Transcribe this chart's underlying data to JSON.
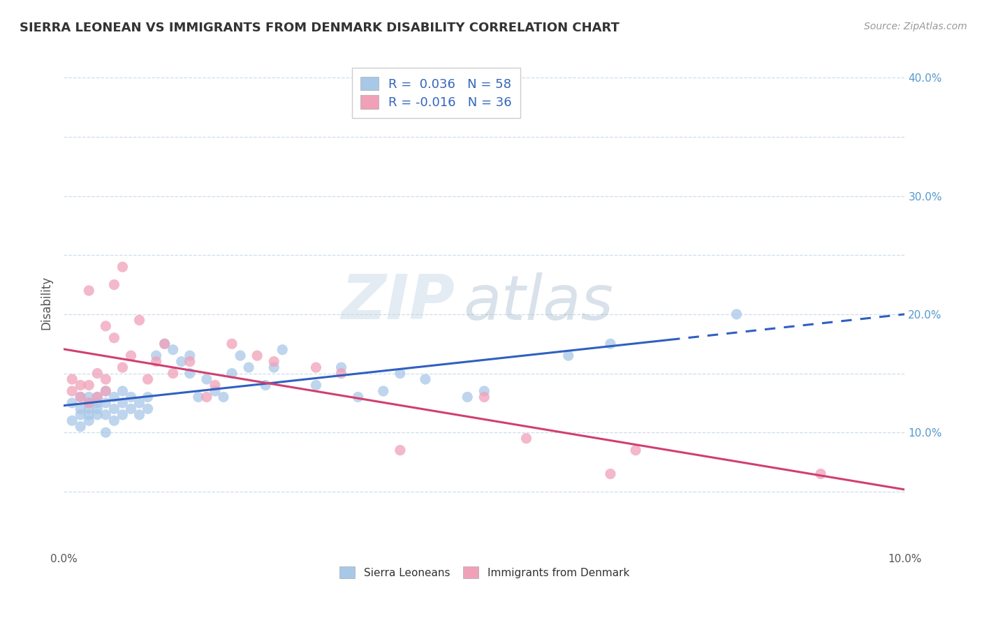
{
  "title": "SIERRA LEONEAN VS IMMIGRANTS FROM DENMARK DISABILITY CORRELATION CHART",
  "source_text": "Source: ZipAtlas.com",
  "ylabel": "Disability",
  "xlim": [
    0.0,
    0.1
  ],
  "ylim": [
    0.0,
    0.42
  ],
  "x_ticks": [
    0.0,
    0.01,
    0.02,
    0.03,
    0.04,
    0.05,
    0.06,
    0.07,
    0.08,
    0.09,
    0.1
  ],
  "x_tick_labels": [
    "0.0%",
    "",
    "",
    "",
    "",
    "",
    "",
    "",
    "",
    "",
    "10.0%"
  ],
  "y_ticks": [
    0.0,
    0.05,
    0.1,
    0.15,
    0.2,
    0.25,
    0.3,
    0.35,
    0.4
  ],
  "y_tick_labels": [
    "",
    "",
    "10.0%",
    "",
    "20.0%",
    "",
    "30.0%",
    "",
    "40.0%"
  ],
  "r_blue": 0.036,
  "n_blue": 58,
  "r_pink": -0.016,
  "n_pink": 36,
  "blue_color": "#a8c8e8",
  "pink_color": "#f0a0b8",
  "blue_line_color": "#3060c0",
  "pink_line_color": "#d04070",
  "legend_blue_label": "Sierra Leoneans",
  "legend_pink_label": "Immigrants from Denmark",
  "watermark_zip": "ZIP",
  "watermark_atlas": "atlas",
  "blue_scatter_x": [
    0.001,
    0.001,
    0.002,
    0.002,
    0.002,
    0.002,
    0.003,
    0.003,
    0.003,
    0.003,
    0.003,
    0.004,
    0.004,
    0.004,
    0.004,
    0.005,
    0.005,
    0.005,
    0.005,
    0.006,
    0.006,
    0.006,
    0.007,
    0.007,
    0.007,
    0.008,
    0.008,
    0.009,
    0.009,
    0.01,
    0.01,
    0.011,
    0.012,
    0.013,
    0.014,
    0.015,
    0.015,
    0.016,
    0.017,
    0.018,
    0.019,
    0.02,
    0.021,
    0.022,
    0.024,
    0.025,
    0.026,
    0.03,
    0.033,
    0.035,
    0.038,
    0.04,
    0.043,
    0.048,
    0.05,
    0.06,
    0.065,
    0.08
  ],
  "blue_scatter_y": [
    0.11,
    0.125,
    0.115,
    0.12,
    0.13,
    0.105,
    0.11,
    0.12,
    0.125,
    0.115,
    0.13,
    0.125,
    0.115,
    0.12,
    0.13,
    0.1,
    0.115,
    0.125,
    0.135,
    0.11,
    0.12,
    0.13,
    0.115,
    0.125,
    0.135,
    0.12,
    0.13,
    0.115,
    0.125,
    0.12,
    0.13,
    0.165,
    0.175,
    0.17,
    0.16,
    0.15,
    0.165,
    0.13,
    0.145,
    0.135,
    0.13,
    0.15,
    0.165,
    0.155,
    0.14,
    0.155,
    0.17,
    0.14,
    0.155,
    0.13,
    0.135,
    0.15,
    0.145,
    0.13,
    0.135,
    0.165,
    0.175,
    0.2
  ],
  "pink_scatter_x": [
    0.001,
    0.001,
    0.002,
    0.002,
    0.003,
    0.003,
    0.003,
    0.004,
    0.004,
    0.005,
    0.005,
    0.005,
    0.006,
    0.006,
    0.007,
    0.007,
    0.008,
    0.009,
    0.01,
    0.011,
    0.012,
    0.013,
    0.015,
    0.017,
    0.018,
    0.02,
    0.023,
    0.025,
    0.03,
    0.033,
    0.04,
    0.05,
    0.055,
    0.065,
    0.068,
    0.09
  ],
  "pink_scatter_y": [
    0.135,
    0.145,
    0.13,
    0.14,
    0.22,
    0.14,
    0.125,
    0.13,
    0.15,
    0.135,
    0.145,
    0.19,
    0.18,
    0.225,
    0.24,
    0.155,
    0.165,
    0.195,
    0.145,
    0.16,
    0.175,
    0.15,
    0.16,
    0.13,
    0.14,
    0.175,
    0.165,
    0.16,
    0.155,
    0.15,
    0.085,
    0.13,
    0.095,
    0.065,
    0.085,
    0.065
  ],
  "blue_line_solid_end": 0.072,
  "grid_color": "#ccddee",
  "title_fontsize": 13,
  "tick_fontsize": 11
}
